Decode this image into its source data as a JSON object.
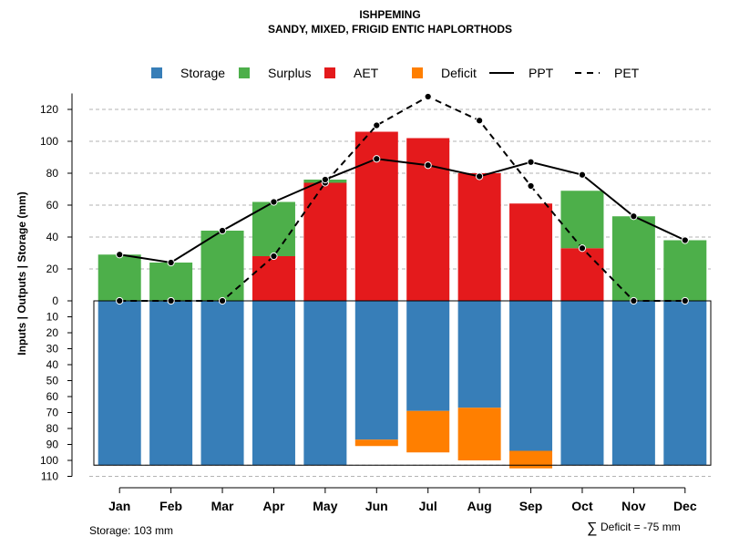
{
  "chart_data": {
    "type": "bar",
    "title": "ISHPEMING",
    "subtitle": "SANDY, MIXED, FRIGID ENTIC HAPLORTHODS",
    "ylabel": "Inputs | Outputs | Storage     (mm)",
    "categories": [
      "Jan",
      "Feb",
      "Mar",
      "Apr",
      "May",
      "Jun",
      "Jul",
      "Aug",
      "Sep",
      "Oct",
      "Nov",
      "Dec"
    ],
    "legend": [
      {
        "name": "Storage",
        "kind": "box",
        "color": "#377EB8"
      },
      {
        "name": "Surplus",
        "kind": "box",
        "color": "#4DAF4A"
      },
      {
        "name": "AET",
        "kind": "box",
        "color": "#E41A1C"
      },
      {
        "name": "Deficit",
        "kind": "box",
        "color": "#FF7F00"
      },
      {
        "name": "PPT",
        "kind": "solid",
        "color": "#000000"
      },
      {
        "name": "PET",
        "kind": "dashed",
        "color": "#000000"
      }
    ],
    "upper_ticks": [
      "0",
      "20",
      "40",
      "60",
      "80",
      "100",
      "120"
    ],
    "lower_ticks": [
      "10",
      "20",
      "30",
      "40",
      "50",
      "60",
      "70",
      "80",
      "90",
      "100",
      "110"
    ],
    "upper_ylim": [
      0,
      130
    ],
    "lower_ylim": [
      0,
      110
    ],
    "series": [
      {
        "name": "AET",
        "values": [
          0,
          0,
          0,
          28,
          74,
          106,
          102,
          80,
          61,
          33,
          0,
          0
        ]
      },
      {
        "name": "Surplus",
        "values": [
          29,
          24,
          44,
          34,
          2,
          0,
          0,
          0,
          0,
          36,
          53,
          38
        ]
      },
      {
        "name": "Storage",
        "values": [
          103,
          103,
          103,
          103,
          103,
          87,
          69,
          67,
          94,
          103,
          103,
          103
        ]
      },
      {
        "name": "Deficit",
        "values": [
          0,
          0,
          0,
          0,
          0,
          4,
          26,
          33,
          11,
          0,
          0,
          0
        ]
      },
      {
        "name": "PPT",
        "values": [
          29,
          24,
          44,
          62,
          76,
          89,
          85,
          78,
          87,
          79,
          53,
          38
        ]
      },
      {
        "name": "PET",
        "values": [
          0,
          0,
          0,
          28,
          74,
          110,
          128,
          113,
          72,
          33,
          0,
          0
        ]
      }
    ],
    "storage_capacity": 103,
    "storage_label": "Storage: 103 mm",
    "deficit_symbol": "∑",
    "deficit_label": "Deficit = -75 mm"
  }
}
